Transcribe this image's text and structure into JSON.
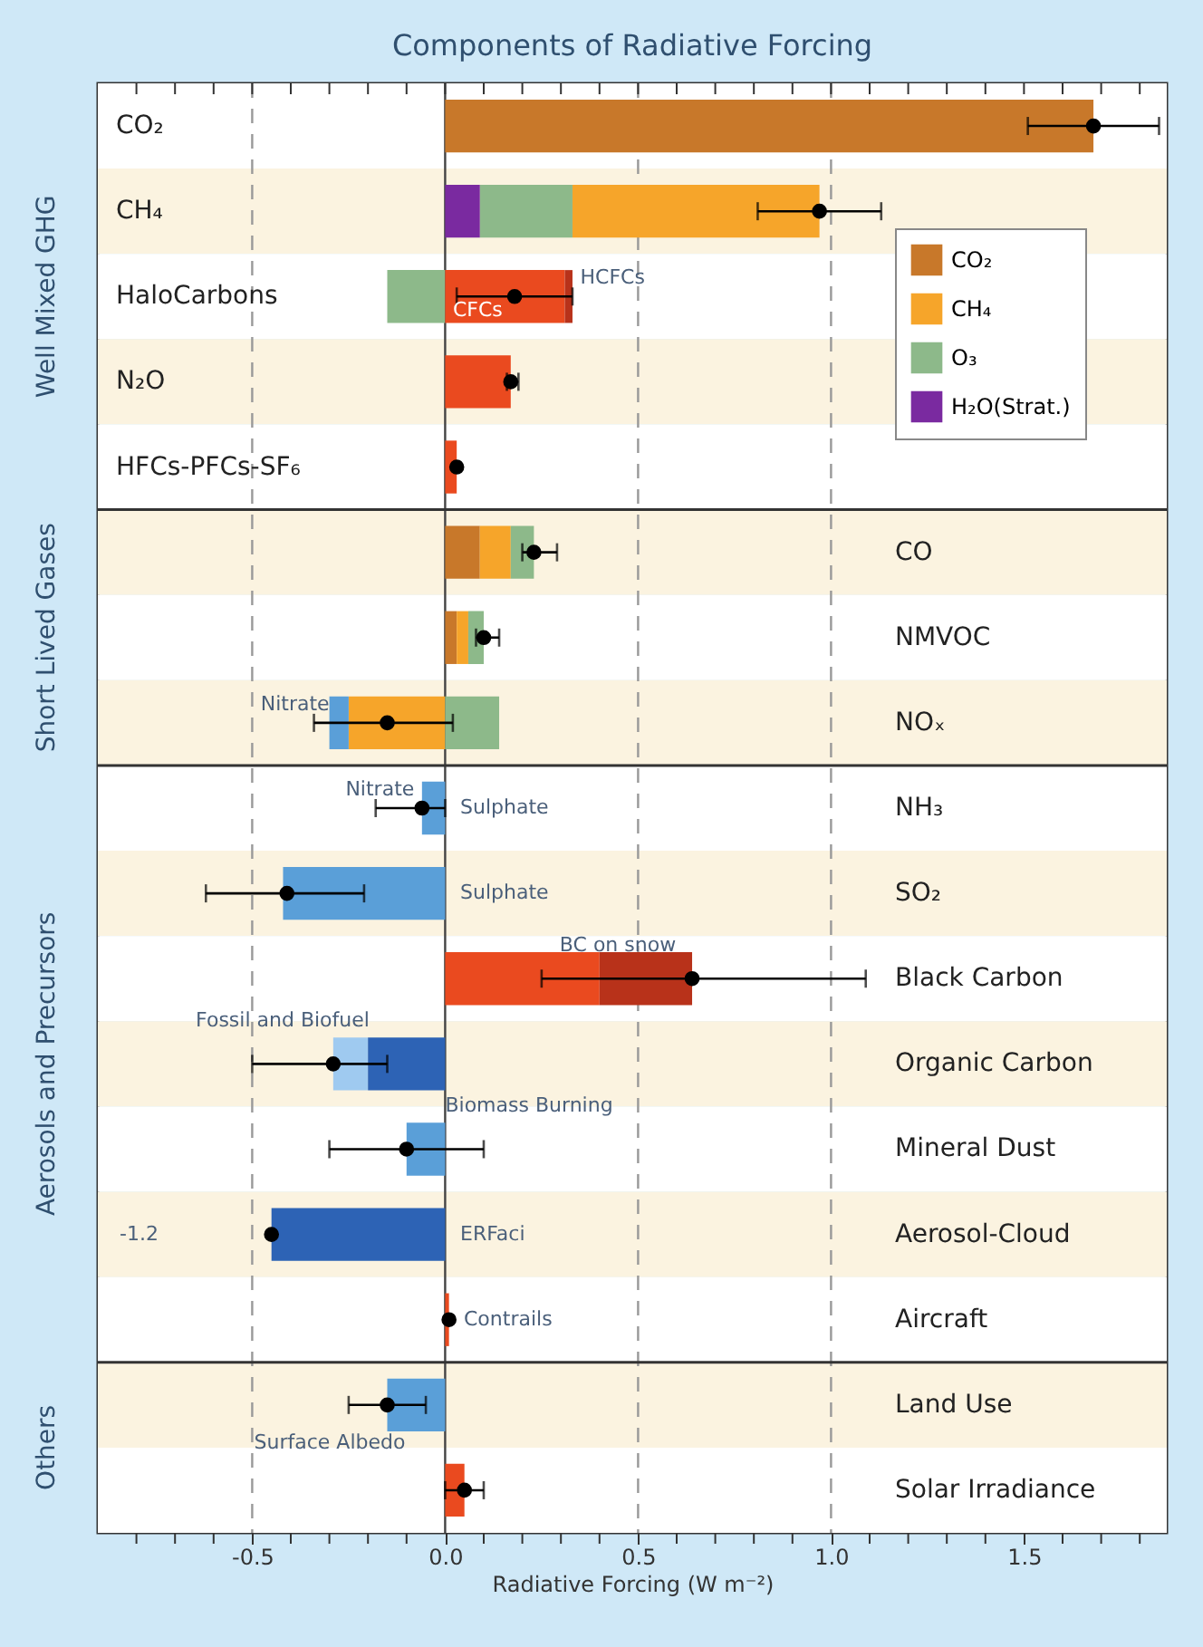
{
  "chart_data": {
    "type": "bar",
    "orientation": "horizontal",
    "title": "Components of Radiative Forcing",
    "xlabel": "Radiative Forcing (W m⁻²)",
    "categories": [
      "CO₂",
      "CH₄",
      "HaloCarbons",
      "N₂O",
      "HFCs-PFCs-SF₆",
      "CO",
      "NMVOC",
      "NOₓ",
      "NH₃",
      "SO₂",
      "Black Carbon",
      "Organic Carbon",
      "Mineral Dust",
      "Aerosol-Cloud",
      "Aircraft",
      "Land Use",
      "Solar Irradiance"
    ],
    "series": [
      {
        "name": "CO₂",
        "color": "#c8782a",
        "values": [
          1.68,
          null,
          null,
          null,
          null,
          0.09,
          0.03,
          null,
          null,
          null,
          null,
          null,
          null,
          null,
          null,
          null,
          null
        ],
        "base": [
          0,
          null,
          null,
          null,
          null,
          0,
          0,
          null,
          null,
          null,
          null,
          null,
          null,
          null,
          null,
          null,
          null
        ]
      },
      {
        "name": "CH₄",
        "color": "#f6a52a",
        "values": [
          null,
          0.64,
          null,
          null,
          null,
          0.08,
          0.03,
          -0.25,
          null,
          null,
          null,
          null,
          null,
          null,
          null,
          null,
          null
        ],
        "base": [
          null,
          0.33,
          null,
          null,
          null,
          0.09,
          0.03,
          0,
          null,
          null,
          null,
          null,
          null,
          null,
          null,
          null,
          null
        ]
      },
      {
        "name": "O₃",
        "color": "#8db98a",
        "values": [
          null,
          0.24,
          -0.15,
          null,
          null,
          0.06,
          0.04,
          0.14,
          null,
          null,
          null,
          null,
          null,
          null,
          null,
          null,
          null
        ],
        "base": [
          null,
          0.09,
          0,
          null,
          null,
          0.17,
          0.06,
          0,
          null,
          null,
          null,
          null,
          null,
          null,
          null,
          null,
          null
        ]
      },
      {
        "name": "H₂O(Strat.)",
        "color": "#7a2aa0",
        "values": [
          null,
          0.09,
          null,
          null,
          null,
          null,
          null,
          null,
          null,
          null,
          null,
          null,
          null,
          null,
          null,
          null,
          null
        ],
        "base": [
          null,
          0,
          null,
          null,
          null,
          null,
          null,
          null,
          null,
          null,
          null,
          null,
          null,
          null,
          null,
          null,
          null
        ]
      },
      {
        "color": "#ea4a1f",
        "values": [
          null,
          null,
          0.31,
          0.17,
          0.03,
          null,
          null,
          null,
          null,
          null,
          0.4,
          null,
          null,
          null,
          0.01,
          null,
          0.05
        ],
        "base": [
          null,
          null,
          0,
          0,
          0,
          null,
          null,
          null,
          null,
          null,
          0,
          null,
          null,
          null,
          0,
          null,
          0
        ]
      },
      {
        "color": "#b8321a",
        "values": [
          null,
          null,
          0.02,
          null,
          null,
          null,
          null,
          null,
          null,
          null,
          0.24,
          null,
          null,
          null,
          null,
          null,
          null
        ],
        "base": [
          null,
          null,
          0.31,
          null,
          null,
          null,
          null,
          null,
          null,
          null,
          0.4,
          null,
          null,
          null,
          null,
          null,
          null
        ]
      },
      {
        "color": "#5a9fd8",
        "values": [
          null,
          null,
          null,
          null,
          null,
          null,
          null,
          -0.05,
          -0.06,
          -0.42,
          null,
          null,
          -0.1,
          null,
          null,
          -0.15,
          null
        ],
        "base": [
          null,
          null,
          null,
          null,
          null,
          null,
          null,
          -0.25,
          0,
          0,
          null,
          null,
          0,
          null,
          null,
          0,
          null
        ]
      },
      {
        "color": "#9fcaf0",
        "values": [
          null,
          null,
          null,
          null,
          null,
          null,
          null,
          null,
          null,
          null,
          null,
          -0.09,
          null,
          null,
          null,
          null,
          null
        ],
        "base": [
          null,
          null,
          null,
          null,
          null,
          null,
          null,
          null,
          null,
          null,
          null,
          -0.2,
          null,
          null,
          null,
          null,
          null
        ]
      },
      {
        "color": "#2d63b5",
        "values": [
          null,
          null,
          null,
          null,
          null,
          null,
          null,
          null,
          null,
          null,
          null,
          -0.2,
          null,
          -0.45,
          null,
          null,
          null
        ],
        "base": [
          null,
          null,
          null,
          null,
          null,
          null,
          null,
          null,
          null,
          null,
          null,
          0,
          null,
          0,
          null,
          null,
          null
        ]
      },
      {
        "type": "scatter",
        "marker": "circle",
        "color": "#000000",
        "values": [
          1.68,
          0.97,
          0.18,
          0.17,
          0.03,
          0.23,
          0.1,
          -0.15,
          -0.06,
          -0.41,
          0.64,
          -0.29,
          -0.1,
          -0.45,
          0.01,
          -0.15,
          0.05
        ],
        "errors": [
          [
            1.51,
            1.85
          ],
          [
            0.81,
            1.13
          ],
          [
            0.03,
            0.33
          ],
          [
            0.16,
            0.19
          ],
          null,
          [
            0.2,
            0.29
          ],
          [
            0.08,
            0.14
          ],
          [
            -0.34,
            0.02
          ],
          [
            -0.18,
            0.0
          ],
          [
            -0.62,
            -0.21
          ],
          [
            0.25,
            1.09
          ],
          [
            -0.5,
            -0.15
          ],
          [
            -0.3,
            0.1
          ],
          null,
          null,
          [
            -0.25,
            -0.05
          ],
          [
            0.0,
            0.1
          ]
        ]
      }
    ],
    "xlim": [
      -0.9,
      1.87
    ],
    "xticks": [
      {
        "value": -0.8,
        "label": null
      },
      {
        "value": -0.7,
        "label": null
      },
      {
        "value": -0.6,
        "label": null
      },
      -0.5,
      {
        "value": -0.4,
        "label": null
      },
      {
        "value": -0.3,
        "label": null
      },
      {
        "value": -0.2,
        "label": null
      },
      {
        "value": -0.1,
        "label": null
      },
      {
        "value": 0,
        "label": "0.0"
      },
      {
        "value": 0.1,
        "label": null
      },
      {
        "value": 0.2,
        "label": null
      },
      {
        "value": 0.3,
        "label": null
      },
      {
        "value": 0.4,
        "label": null
      },
      0.5,
      {
        "value": 0.6,
        "label": null
      },
      {
        "value": 0.7,
        "label": null
      },
      {
        "value": 0.8,
        "label": null
      },
      {
        "value": 0.9,
        "label": null
      },
      {
        "value": 1,
        "label": "1.0"
      },
      {
        "value": 1.1,
        "label": null
      },
      {
        "value": 1.2,
        "label": null
      },
      {
        "value": 1.3,
        "label": null
      },
      {
        "value": 1.4,
        "label": null
      },
      1.5,
      {
        "value": 1.6,
        "label": null
      },
      {
        "value": 1.7,
        "label": null
      },
      {
        "value": 1.8,
        "label": null
      }
    ],
    "ref_lines": [
      {
        "axis": "x",
        "value": -0.5,
        "line_style": "dashed",
        "color": "#999999"
      },
      {
        "axis": "x",
        "value": 0,
        "line_style": "solid",
        "color": "#444444"
      },
      {
        "axis": "x",
        "value": 0.5,
        "line_style": "dashed",
        "color": "#999999"
      },
      {
        "axis": "x",
        "value": 1,
        "line_style": "dashed",
        "color": "#999999"
      }
    ],
    "legend": "top right",
    "annotations": [
      "Well Mixed GHG",
      "Short Lived Gases",
      "Aerosols and Precursors",
      "Others",
      {
        "text": "HCFCs",
        "x": 0.35,
        "y": "HaloCarbons"
      },
      {
        "text": "CFCs",
        "x": 0.02,
        "y": "HaloCarbons"
      },
      {
        "text": "Nitrate",
        "x": -0.3,
        "y": "NOₓ"
      },
      {
        "text": "Nitrate",
        "x": -0.08,
        "y": "NH₃"
      },
      "Sulphate",
      "Sulphate",
      "BC on snow",
      "Fossil and Biofuel",
      "Biomass Burning",
      "ERFaci",
      "-1.2",
      "Contrails",
      "Surface Albedo"
    ]
  }
}
